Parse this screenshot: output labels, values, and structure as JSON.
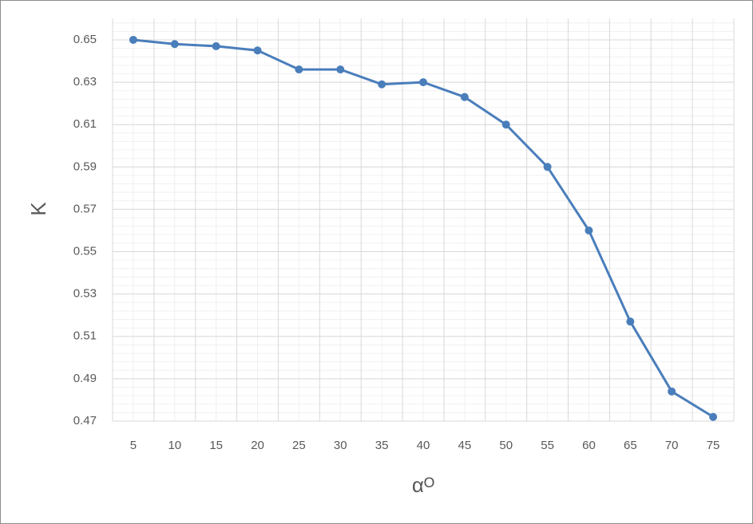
{
  "chart_data": {
    "type": "line",
    "x_label": "αᴼ",
    "y_label": "K",
    "categories": [
      "5",
      "10",
      "15",
      "20",
      "25",
      "30",
      "35",
      "40",
      "45",
      "50",
      "55",
      "60",
      "65",
      "70",
      "75"
    ],
    "series": [
      {
        "name": "K",
        "color": "#4a7ebb",
        "values": [
          0.65,
          0.648,
          0.647,
          0.645,
          0.636,
          0.636,
          0.629,
          0.63,
          0.623,
          0.61,
          0.59,
          0.56,
          0.517,
          0.484,
          0.472
        ]
      }
    ],
    "ylim": [
      0.47,
      0.66
    ],
    "yticks": [
      0.47,
      0.49,
      0.51,
      0.53,
      0.55,
      0.57,
      0.59,
      0.61,
      0.63,
      0.65
    ],
    "grid": true
  }
}
